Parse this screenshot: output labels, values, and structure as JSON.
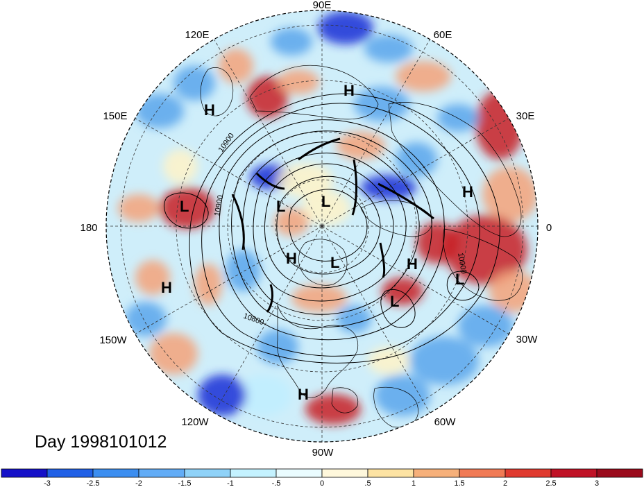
{
  "map": {
    "projection": "polar-stereographic",
    "hemisphere": "north",
    "longitude_labels": [
      {
        "id": "lon-90e",
        "text": "90E"
      },
      {
        "id": "lon-60e",
        "text": "60E"
      },
      {
        "id": "lon-30e",
        "text": "30E"
      },
      {
        "id": "lon-0",
        "text": "0"
      },
      {
        "id": "lon-30w",
        "text": "30W"
      },
      {
        "id": "lon-60w",
        "text": "60W"
      },
      {
        "id": "lon-90w",
        "text": "90W"
      },
      {
        "id": "lon-120w",
        "text": "120W"
      },
      {
        "id": "lon-150w",
        "text": "150W"
      },
      {
        "id": "lon-180",
        "text": "180"
      },
      {
        "id": "lon-150e",
        "text": "150E"
      },
      {
        "id": "lon-120e",
        "text": "120E"
      }
    ],
    "pressure_centers": [
      {
        "id": "h-siberia",
        "text": "H"
      },
      {
        "id": "h-kamchatka",
        "text": "H"
      },
      {
        "id": "h-east-europe",
        "text": "H"
      },
      {
        "id": "h-atlantic",
        "text": "H"
      },
      {
        "id": "h-arctic",
        "text": "H"
      },
      {
        "id": "h-pacific",
        "text": "H"
      },
      {
        "id": "h-mexico",
        "text": "H"
      },
      {
        "id": "l-dateline",
        "text": "L"
      },
      {
        "id": "l-east-siberia",
        "text": "L"
      },
      {
        "id": "l-arctic-center",
        "text": "L"
      },
      {
        "id": "l-greenland",
        "text": "L"
      },
      {
        "id": "l-north-atlantic",
        "text": "L"
      },
      {
        "id": "l-iberia",
        "text": "L"
      }
    ],
    "contour_labels": [
      "10900",
      "10900",
      "10800",
      "10900"
    ],
    "colors": {
      "strong_negative": "#1a2fd6",
      "negative": "#5aa6ec",
      "weak_negative": "#bfefff",
      "weak_positive": "#fff3c8",
      "positive": "#f4a27a",
      "strong_positive": "#c81e23",
      "land_outline": "#000000",
      "contour": "#000000"
    }
  },
  "day_label": "Day 1998101012",
  "colorbar": {
    "ticks": [
      "-3",
      "-2.5",
      "-2",
      "-1.5",
      "-1",
      "-.5",
      "0",
      ".5",
      "1",
      "1.5",
      "2",
      "2.5",
      "3"
    ],
    "colors": [
      "#1510c8",
      "#2060e6",
      "#3c8ef0",
      "#62acf6",
      "#8fd2f8",
      "#c4f2ff",
      "#eafcff",
      "#fff8dc",
      "#fde3a3",
      "#f6b07a",
      "#f07a55",
      "#e03a2f",
      "#c01226",
      "#9a0a1c"
    ]
  }
}
